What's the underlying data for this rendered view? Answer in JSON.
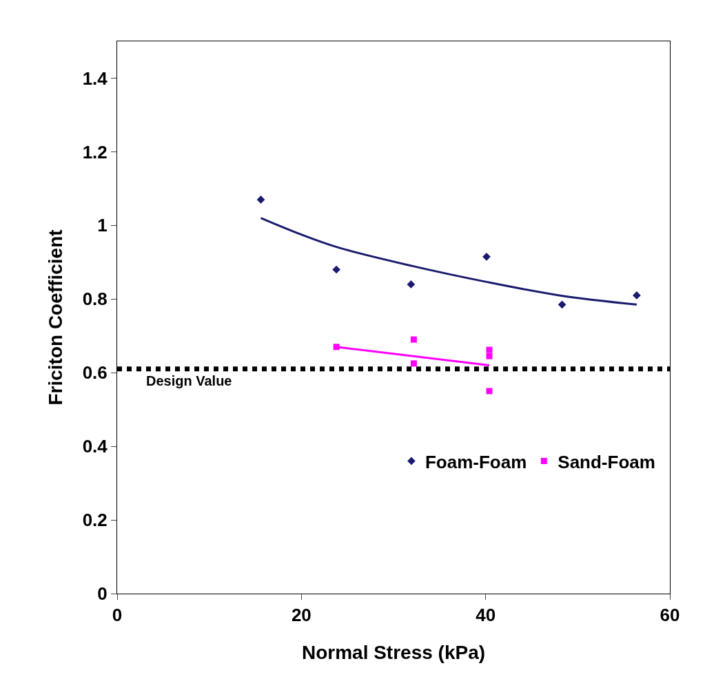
{
  "chart_data": {
    "type": "scatter",
    "xlabel": "Normal Stress (kPa)",
    "ylabel": "Friciton Coefficient",
    "xlim": [
      0,
      60
    ],
    "xticks": [
      0,
      20,
      40,
      60
    ],
    "ylim": [
      0,
      1.5
    ],
    "yticks": [
      0,
      0.2,
      0.4,
      0.6,
      0.8,
      1,
      1.2,
      1.4
    ],
    "legend": "bottom right",
    "series": [
      {
        "name": "Foam-Foam",
        "color": "#1a1a6e",
        "marker": "diamond",
        "x": [
          15.6,
          23.8,
          31.9,
          40.1,
          48.3,
          56.4
        ],
        "values": [
          1.07,
          0.88,
          0.84,
          0.915,
          0.785,
          0.81
        ]
      },
      {
        "name": "Sand-Foam",
        "color": "#ff00ff",
        "marker": "square",
        "x": [
          23.8,
          32.2,
          32.2,
          40.4,
          40.4,
          40.4
        ],
        "values": [
          0.67,
          0.69,
          0.625,
          0.662,
          0.645,
          0.55
        ]
      },
      {
        "type": "line",
        "color": "#1a1a6e",
        "marker": "none",
        "x": [
          15.6,
          20,
          24,
          32,
          40,
          48,
          56.4
        ],
        "values": [
          1.02,
          0.975,
          0.94,
          0.89,
          0.847,
          0.81,
          0.785
        ]
      },
      {
        "type": "line",
        "color": "#ff00ff",
        "marker": "none",
        "x": [
          23.8,
          40.4
        ],
        "values": [
          0.67,
          0.62
        ]
      }
    ],
    "ref_lines": [
      {
        "axis": "y",
        "value": 0.61,
        "label": "Design Value",
        "color": "#000000",
        "line_style": "dotted"
      }
    ]
  }
}
